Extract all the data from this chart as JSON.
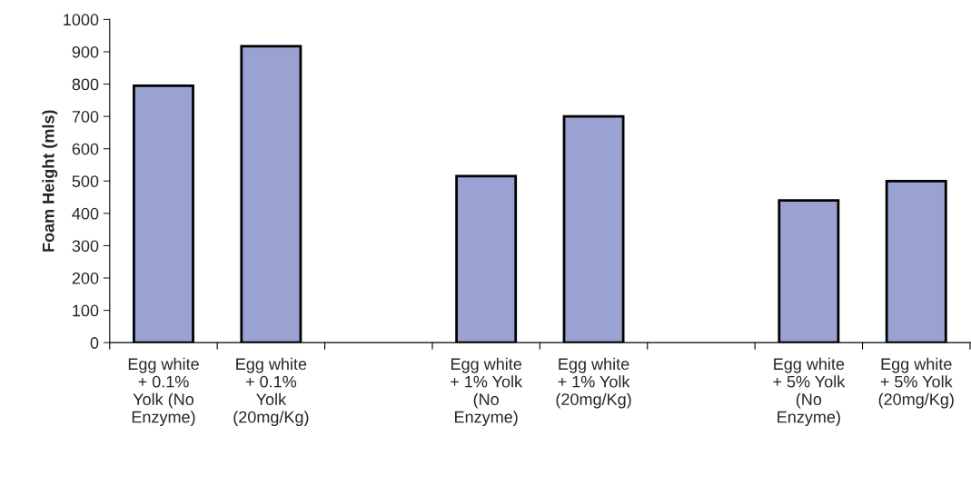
{
  "chart_data": {
    "type": "bar",
    "ylabel": "Foam Height (mls)",
    "categories": [
      "Egg white\n+ 0.1%\nYolk (No\nEnzyme)",
      "Egg white\n+ 0.1%\nYolk\n(20mg/Kg)",
      null,
      "Egg white\n+ 1% Yolk\n(No\nEnzyme)",
      "Egg white\n+ 1% Yolk\n(20mg/Kg)",
      null,
      "Egg white\n+ 5% Yolk\n(No\nEnzyme)",
      "Egg white\n+ 5% Yolk\n(20mg/Kg)"
    ],
    "values": [
      795,
      917,
      null,
      515,
      700,
      null,
      440,
      500
    ],
    "color": "#9aa2d4",
    "ylim": [
      0,
      1000
    ],
    "yticks": [
      0,
      100,
      200,
      300,
      400,
      500,
      600,
      700,
      800,
      900,
      1000
    ],
    "grid": false,
    "legend": false
  }
}
